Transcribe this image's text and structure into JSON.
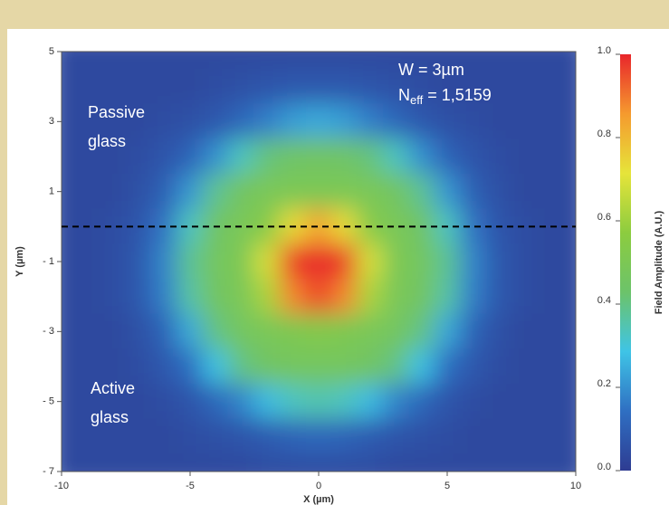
{
  "chart_data": {
    "type": "heatmap",
    "x_label": "X (µm)",
    "y_label": "Y (µm)",
    "colorbar_label": "Field Amplitude (A.U.)",
    "annotations": {
      "width": "W = 3µm",
      "neff": {
        "base": "N",
        "sub": "eff",
        "rest": " = 1,5159"
      },
      "passive": [
        "Passive",
        "glass"
      ],
      "active": [
        "Active",
        "glass"
      ]
    },
    "hline": 0,
    "xlim": [
      -10,
      10
    ],
    "ylim": [
      -7,
      5
    ],
    "xticks": [
      -10,
      -5,
      0,
      5,
      10
    ],
    "yticks": [
      5,
      3,
      1,
      {
        "value": -1,
        "label": "- 1"
      },
      {
        "value": -3,
        "label": "- 3"
      },
      {
        "value": -5,
        "label": "- 5"
      },
      {
        "value": -7,
        "label": "- 7"
      }
    ],
    "zlim": [
      0,
      1
    ],
    "zticks": [
      {
        "value": 1,
        "label": "1.0"
      },
      0.8,
      0.6,
      0.4,
      0.2,
      {
        "value": 0,
        "label": "0.0"
      }
    ],
    "colormap": [
      "#2e3c92",
      "#2f6fc2",
      "#3fc4e6",
      "#6cc36a",
      "#8ccc3f",
      "#e6e43a",
      "#f59a2e",
      "#e8262b"
    ],
    "x": [
      -10,
      -9,
      -8,
      -7,
      -6,
      -5,
      -4,
      -3,
      -2,
      -1,
      0,
      1,
      2,
      3,
      4,
      5,
      6,
      7,
      8,
      9,
      10
    ],
    "y": [
      5,
      4,
      3,
      2,
      1,
      0,
      -1,
      -2,
      -3,
      -4,
      -5,
      -6,
      -7
    ],
    "z": [
      [
        0.04,
        0.04,
        0.04,
        0.04,
        0.04,
        0.04,
        0.04,
        0.04,
        0.04,
        0.04,
        0.04,
        0.04,
        0.04,
        0.04,
        0.04,
        0.04,
        0.04,
        0.04,
        0.04,
        0.04,
        0.04
      ],
      [
        0.04,
        0.04,
        0.04,
        0.04,
        0.04,
        0.04,
        0.05,
        0.06,
        0.07,
        0.08,
        0.08,
        0.08,
        0.07,
        0.06,
        0.05,
        0.04,
        0.04,
        0.04,
        0.04,
        0.04,
        0.04
      ],
      [
        0.04,
        0.04,
        0.04,
        0.04,
        0.05,
        0.06,
        0.08,
        0.12,
        0.17,
        0.22,
        0.24,
        0.22,
        0.17,
        0.12,
        0.08,
        0.06,
        0.05,
        0.04,
        0.04,
        0.04,
        0.04
      ],
      [
        0.04,
        0.04,
        0.04,
        0.05,
        0.07,
        0.11,
        0.2,
        0.33,
        0.41,
        0.44,
        0.45,
        0.44,
        0.41,
        0.33,
        0.2,
        0.11,
        0.07,
        0.05,
        0.04,
        0.04,
        0.04
      ],
      [
        0.04,
        0.04,
        0.04,
        0.06,
        0.1,
        0.21,
        0.38,
        0.46,
        0.49,
        0.5,
        0.5,
        0.5,
        0.49,
        0.46,
        0.38,
        0.21,
        0.1,
        0.06,
        0.04,
        0.04,
        0.04
      ],
      [
        0.04,
        0.04,
        0.05,
        0.07,
        0.15,
        0.33,
        0.45,
        0.49,
        0.54,
        0.73,
        0.84,
        0.73,
        0.54,
        0.49,
        0.45,
        0.33,
        0.15,
        0.07,
        0.05,
        0.04,
        0.04
      ],
      [
        0.04,
        0.04,
        0.05,
        0.08,
        0.18,
        0.38,
        0.47,
        0.5,
        0.69,
        0.97,
        1,
        0.97,
        0.69,
        0.5,
        0.47,
        0.38,
        0.18,
        0.08,
        0.05,
        0.04,
        0.04
      ],
      [
        0.04,
        0.04,
        0.05,
        0.08,
        0.17,
        0.36,
        0.46,
        0.49,
        0.62,
        0.88,
        0.96,
        0.88,
        0.62,
        0.49,
        0.46,
        0.36,
        0.17,
        0.08,
        0.05,
        0.04,
        0.04
      ],
      [
        0.04,
        0.04,
        0.04,
        0.06,
        0.11,
        0.24,
        0.4,
        0.47,
        0.49,
        0.51,
        0.53,
        0.51,
        0.49,
        0.47,
        0.4,
        0.24,
        0.11,
        0.06,
        0.04,
        0.04,
        0.04
      ],
      [
        0.04,
        0.04,
        0.04,
        0.05,
        0.08,
        0.14,
        0.28,
        0.4,
        0.45,
        0.47,
        0.47,
        0.47,
        0.45,
        0.4,
        0.28,
        0.14,
        0.08,
        0.05,
        0.04,
        0.04,
        0.04
      ],
      [
        0.04,
        0.04,
        0.04,
        0.04,
        0.05,
        0.07,
        0.12,
        0.18,
        0.27,
        0.33,
        0.35,
        0.33,
        0.27,
        0.18,
        0.12,
        0.07,
        0.05,
        0.04,
        0.04,
        0.04,
        0.04
      ],
      [
        0.04,
        0.04,
        0.04,
        0.04,
        0.04,
        0.05,
        0.06,
        0.07,
        0.09,
        0.11,
        0.12,
        0.11,
        0.09,
        0.07,
        0.06,
        0.05,
        0.04,
        0.04,
        0.04,
        0.04,
        0.04
      ],
      [
        0.04,
        0.04,
        0.04,
        0.04,
        0.04,
        0.04,
        0.04,
        0.04,
        0.05,
        0.05,
        0.05,
        0.05,
        0.05,
        0.04,
        0.04,
        0.04,
        0.04,
        0.04,
        0.04,
        0.04,
        0.04
      ]
    ]
  }
}
